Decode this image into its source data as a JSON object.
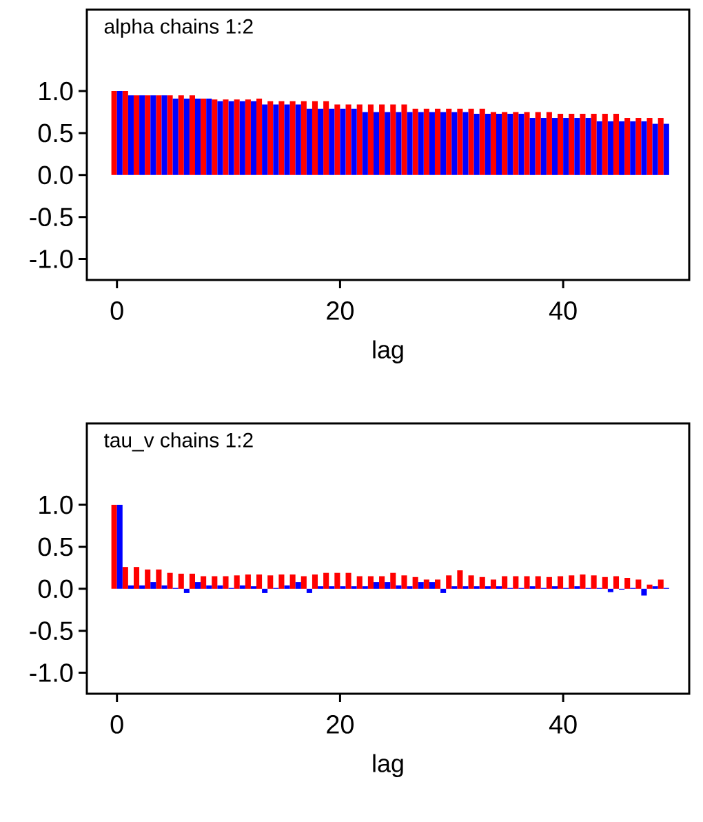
{
  "chart_data": [
    {
      "type": "bar",
      "title": "alpha chains 1:2",
      "xlabel": "lag",
      "x": [
        0,
        1,
        2,
        3,
        4,
        5,
        6,
        7,
        8,
        9,
        10,
        11,
        12,
        13,
        14,
        15,
        16,
        17,
        18,
        19,
        20,
        21,
        22,
        23,
        24,
        25,
        26,
        27,
        28,
        29,
        30,
        31,
        32,
        33,
        34,
        35,
        36,
        37,
        38,
        39,
        40,
        41,
        42,
        43,
        44,
        45,
        46,
        47,
        48,
        49
      ],
      "series": [
        {
          "color": "#ff0000",
          "values": [
            1.0,
            1.0,
            0.95,
            0.95,
            0.95,
            0.95,
            0.95,
            0.95,
            0.91,
            0.9,
            0.9,
            0.9,
            0.9,
            0.91,
            0.88,
            0.88,
            0.88,
            0.88,
            0.88,
            0.88,
            0.84,
            0.84,
            0.84,
            0.84,
            0.84,
            0.84,
            0.84,
            0.79,
            0.79,
            0.79,
            0.79,
            0.79,
            0.79,
            0.79,
            0.75,
            0.75,
            0.75,
            0.75,
            0.75,
            0.75,
            0.73,
            0.73,
            0.73,
            0.73,
            0.73,
            0.73,
            0.68,
            0.68,
            0.68,
            0.68
          ]
        },
        {
          "color": "#0000ff",
          "values": [
            1.0,
            0.95,
            0.95,
            0.95,
            0.95,
            0.91,
            0.91,
            0.91,
            0.91,
            0.88,
            0.88,
            0.88,
            0.88,
            0.84,
            0.84,
            0.84,
            0.84,
            0.79,
            0.79,
            0.79,
            0.79,
            0.79,
            0.75,
            0.75,
            0.75,
            0.75,
            0.75,
            0.75,
            0.75,
            0.75,
            0.75,
            0.75,
            0.73,
            0.73,
            0.73,
            0.73,
            0.73,
            0.68,
            0.68,
            0.68,
            0.68,
            0.68,
            0.68,
            0.64,
            0.64,
            0.64,
            0.64,
            0.64,
            0.61,
            0.61
          ]
        }
      ],
      "xlim": [
        -2.7,
        51.3
      ],
      "ylim": [
        -1.25,
        1.97
      ],
      "xticks": [
        0,
        20,
        40
      ],
      "yticks": [
        {
          "value": -1,
          "label": "-1.0"
        },
        {
          "value": -0.5,
          "label": "-0.5"
        },
        {
          "value": 0,
          "label": "0.0"
        },
        {
          "value": 0.5,
          "label": "0.5"
        },
        {
          "value": 1,
          "label": "1.0"
        }
      ]
    },
    {
      "type": "bar",
      "title": "tau_v chains 1:2",
      "xlabel": "lag",
      "x": [
        0,
        1,
        2,
        3,
        4,
        5,
        6,
        7,
        8,
        9,
        10,
        11,
        12,
        13,
        14,
        15,
        16,
        17,
        18,
        19,
        20,
        21,
        22,
        23,
        24,
        25,
        26,
        27,
        28,
        29,
        30,
        31,
        32,
        33,
        34,
        35,
        36,
        37,
        38,
        39,
        40,
        41,
        42,
        43,
        44,
        45,
        46,
        47,
        48,
        49
      ],
      "series": [
        {
          "color": "#ff0000",
          "values": [
            1.0,
            0.26,
            0.26,
            0.23,
            0.23,
            0.19,
            0.18,
            0.18,
            0.15,
            0.15,
            0.15,
            0.16,
            0.17,
            0.17,
            0.16,
            0.17,
            0.17,
            0.15,
            0.17,
            0.19,
            0.19,
            0.19,
            0.15,
            0.15,
            0.15,
            0.19,
            0.16,
            0.14,
            0.11,
            0.11,
            0.16,
            0.22,
            0.16,
            0.14,
            0.11,
            0.15,
            0.15,
            0.15,
            0.15,
            0.14,
            0.15,
            0.16,
            0.17,
            0.16,
            0.14,
            0.15,
            0.13,
            0.11,
            0.05,
            0.11
          ]
        },
        {
          "color": "#0000ff",
          "values": [
            1.0,
            0.04,
            0.04,
            0.08,
            0.04,
            0.01,
            -0.05,
            0.08,
            0.04,
            0.04,
            0.01,
            0.04,
            0.03,
            -0.05,
            0.01,
            0.04,
            0.08,
            -0.05,
            0.03,
            0.03,
            0.03,
            0.03,
            0.03,
            0.08,
            0.08,
            0.04,
            0.03,
            0.08,
            0.08,
            -0.05,
            0.03,
            0.03,
            0.03,
            0.03,
            0.03,
            0.01,
            0.01,
            0.03,
            0.01,
            0.03,
            0.01,
            0.03,
            0.01,
            0.01,
            -0.04,
            -0.01,
            0.01,
            -0.08,
            0.03,
            0.01
          ]
        }
      ],
      "xlim": [
        -2.7,
        51.3
      ],
      "ylim": [
        -1.25,
        1.97
      ],
      "xticks": [
        0,
        20,
        40
      ],
      "yticks": [
        {
          "value": -1,
          "label": "-1.0"
        },
        {
          "value": -0.5,
          "label": "-0.5"
        },
        {
          "value": 0,
          "label": "0.0"
        },
        {
          "value": 0.5,
          "label": "0.5"
        },
        {
          "value": 1,
          "label": "1.0"
        }
      ]
    }
  ]
}
